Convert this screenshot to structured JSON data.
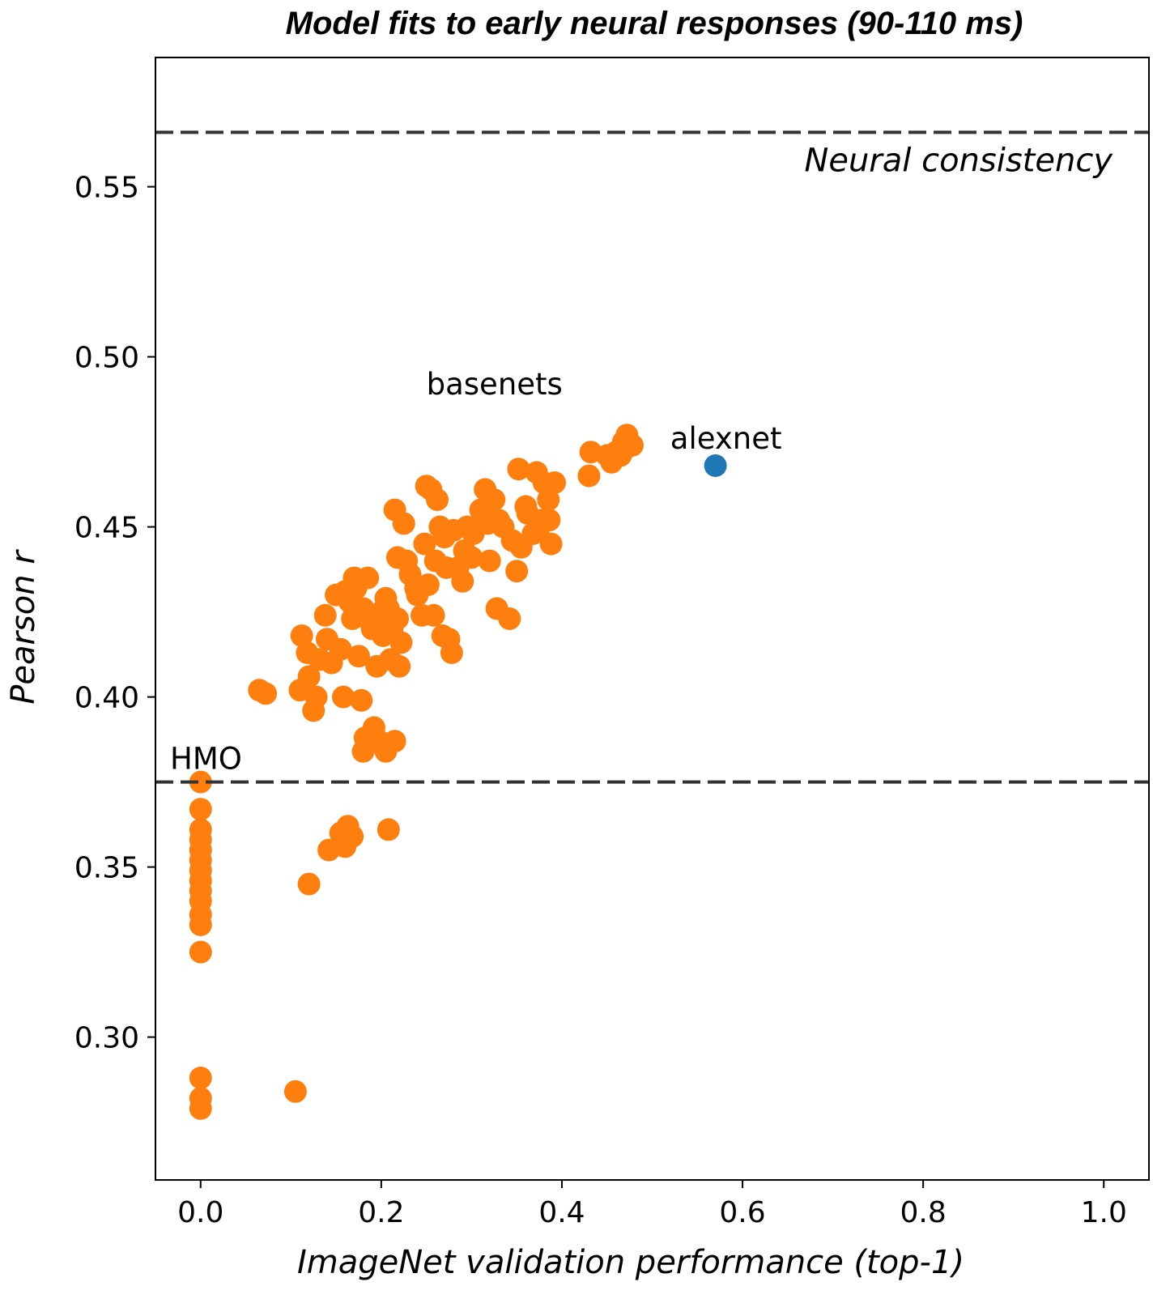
{
  "chart_data": {
    "type": "scatter",
    "title": "Model fits to early neural responses (90-110 ms)",
    "xlabel": "ImageNet validation performance (top-1)",
    "ylabel": "Pearson r",
    "xlim": [
      -0.05,
      1.05
    ],
    "ylim": [
      0.258,
      0.588
    ],
    "xticks": [
      "0.0",
      "0.2",
      "0.4",
      "0.6",
      "0.8",
      "1.0"
    ],
    "yticks": [
      "0.30",
      "0.35",
      "0.40",
      "0.45",
      "0.50",
      "0.55"
    ],
    "grid": false,
    "reference_lines": [
      {
        "label": "Neural consistency",
        "y": 0.566,
        "style": "dashed",
        "color": "#333333"
      },
      {
        "label": "HMO",
        "y": 0.375,
        "style": "dashed",
        "color": "#333333"
      }
    ],
    "annotations": [
      {
        "text": "basenets",
        "x": 0.25,
        "y": 0.489
      },
      {
        "text": "alexnet",
        "x": 0.52,
        "y": 0.473
      }
    ],
    "series": [
      {
        "color": "#ff7f0e",
        "points": [
          [
            0.0,
            0.375
          ],
          [
            0.0,
            0.367
          ],
          [
            0.0,
            0.361
          ],
          [
            0.0,
            0.358
          ],
          [
            0.0,
            0.355
          ],
          [
            0.0,
            0.352
          ],
          [
            0.0,
            0.349
          ],
          [
            0.0,
            0.346
          ],
          [
            0.0,
            0.343
          ],
          [
            0.0,
            0.34
          ],
          [
            0.0,
            0.336
          ],
          [
            0.0,
            0.333
          ],
          [
            0.0,
            0.325
          ],
          [
            0.0,
            0.288
          ],
          [
            0.0,
            0.282
          ],
          [
            0.0,
            0.279
          ],
          [
            0.105,
            0.284
          ],
          [
            0.12,
            0.345
          ],
          [
            0.142,
            0.355
          ],
          [
            0.155,
            0.36
          ],
          [
            0.163,
            0.362
          ],
          [
            0.16,
            0.356
          ],
          [
            0.168,
            0.359
          ],
          [
            0.208,
            0.361
          ],
          [
            0.065,
            0.402
          ],
          [
            0.072,
            0.401
          ],
          [
            0.112,
            0.418
          ],
          [
            0.11,
            0.402
          ],
          [
            0.118,
            0.413
          ],
          [
            0.12,
            0.406
          ],
          [
            0.125,
            0.396
          ],
          [
            0.128,
            0.4
          ],
          [
            0.132,
            0.411
          ],
          [
            0.138,
            0.424
          ],
          [
            0.14,
            0.417
          ],
          [
            0.145,
            0.41
          ],
          [
            0.15,
            0.43
          ],
          [
            0.155,
            0.414
          ],
          [
            0.158,
            0.4
          ],
          [
            0.16,
            0.431
          ],
          [
            0.165,
            0.428
          ],
          [
            0.168,
            0.423
          ],
          [
            0.17,
            0.435
          ],
          [
            0.172,
            0.432
          ],
          [
            0.175,
            0.412
          ],
          [
            0.178,
            0.399
          ],
          [
            0.18,
            0.384
          ],
          [
            0.18,
            0.426
          ],
          [
            0.182,
            0.388
          ],
          [
            0.185,
            0.435
          ],
          [
            0.188,
            0.422
          ],
          [
            0.19,
            0.42
          ],
          [
            0.192,
            0.391
          ],
          [
            0.195,
            0.409
          ],
          [
            0.198,
            0.387
          ],
          [
            0.2,
            0.425
          ],
          [
            0.202,
            0.418
          ],
          [
            0.205,
            0.384
          ],
          [
            0.205,
            0.429
          ],
          [
            0.208,
            0.426
          ],
          [
            0.21,
            0.411
          ],
          [
            0.212,
            0.42
          ],
          [
            0.215,
            0.387
          ],
          [
            0.218,
            0.423
          ],
          [
            0.22,
            0.409
          ],
          [
            0.222,
            0.416
          ],
          [
            0.215,
            0.455
          ],
          [
            0.225,
            0.451
          ],
          [
            0.218,
            0.441
          ],
          [
            0.228,
            0.44
          ],
          [
            0.232,
            0.436
          ],
          [
            0.238,
            0.432
          ],
          [
            0.24,
            0.43
          ],
          [
            0.245,
            0.424
          ],
          [
            0.248,
            0.445
          ],
          [
            0.25,
            0.462
          ],
          [
            0.252,
            0.433
          ],
          [
            0.255,
            0.461
          ],
          [
            0.258,
            0.424
          ],
          [
            0.26,
            0.44
          ],
          [
            0.262,
            0.458
          ],
          [
            0.265,
            0.45
          ],
          [
            0.268,
            0.418
          ],
          [
            0.27,
            0.447
          ],
          [
            0.272,
            0.438
          ],
          [
            0.275,
            0.417
          ],
          [
            0.278,
            0.413
          ],
          [
            0.28,
            0.449
          ],
          [
            0.285,
            0.438
          ],
          [
            0.29,
            0.434
          ],
          [
            0.292,
            0.443
          ],
          [
            0.295,
            0.45
          ],
          [
            0.3,
            0.441
          ],
          [
            0.302,
            0.448
          ],
          [
            0.31,
            0.455
          ],
          [
            0.315,
            0.461
          ],
          [
            0.318,
            0.451
          ],
          [
            0.32,
            0.44
          ],
          [
            0.325,
            0.458
          ],
          [
            0.328,
            0.426
          ],
          [
            0.33,
            0.452
          ],
          [
            0.335,
            0.45
          ],
          [
            0.342,
            0.423
          ],
          [
            0.345,
            0.446
          ],
          [
            0.35,
            0.437
          ],
          [
            0.352,
            0.467
          ],
          [
            0.355,
            0.444
          ],
          [
            0.36,
            0.456
          ],
          [
            0.362,
            0.454
          ],
          [
            0.368,
            0.448
          ],
          [
            0.372,
            0.466
          ],
          [
            0.375,
            0.45
          ],
          [
            0.378,
            0.452
          ],
          [
            0.38,
            0.463
          ],
          [
            0.385,
            0.458
          ],
          [
            0.386,
            0.452
          ],
          [
            0.388,
            0.445
          ],
          [
            0.392,
            0.463
          ],
          [
            0.43,
            0.465
          ],
          [
            0.432,
            0.472
          ],
          [
            0.45,
            0.471
          ],
          [
            0.455,
            0.469
          ],
          [
            0.46,
            0.472
          ],
          [
            0.465,
            0.471
          ],
          [
            0.468,
            0.475
          ],
          [
            0.47,
            0.473
          ],
          [
            0.472,
            0.477
          ],
          [
            0.478,
            0.474
          ]
        ]
      },
      {
        "color": "#1f77b4",
        "points": [
          [
            0.57,
            0.468
          ]
        ]
      }
    ]
  }
}
